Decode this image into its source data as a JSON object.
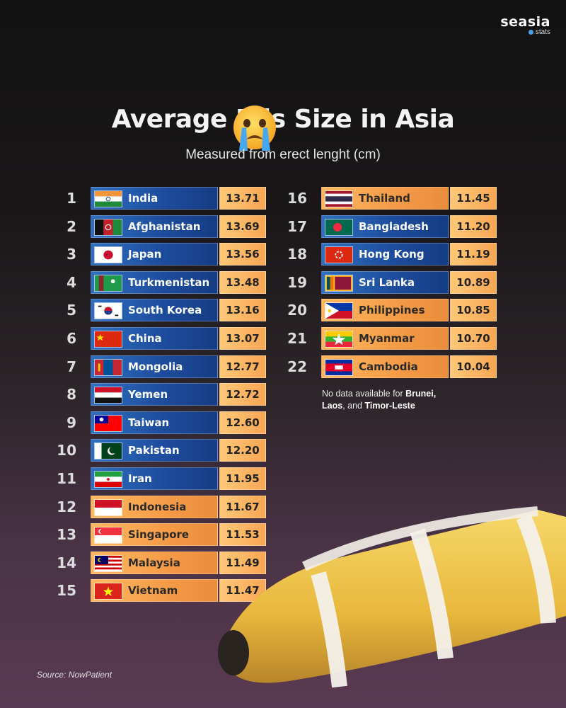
{
  "brand": {
    "name": "seasia",
    "sub": "stats"
  },
  "chart_data": {
    "type": "table",
    "title": "Average P  is Size in Asia",
    "subtitle": "Measured from erect lenght (cm)",
    "rows": [
      {
        "rank": "1",
        "country": "India",
        "value": 13.71
      },
      {
        "rank": "2",
        "country": "Afghanistan",
        "value": 13.69
      },
      {
        "rank": "3",
        "country": "Japan",
        "value": 13.56
      },
      {
        "rank": "4",
        "country": "Turkmenistan",
        "value": 13.48
      },
      {
        "rank": "5",
        "country": "South Korea",
        "value": 13.16
      },
      {
        "rank": "6",
        "country": "China",
        "value": 13.07
      },
      {
        "rank": "7",
        "country": "Mongolia",
        "value": 12.77
      },
      {
        "rank": "8",
        "country": "Yemen",
        "value": 12.72
      },
      {
        "rank": "9",
        "country": "Taiwan",
        "value": 12.6
      },
      {
        "rank": "10",
        "country": "Pakistan",
        "value": 12.2
      },
      {
        "rank": "11",
        "country": "Iran",
        "value": 11.95
      },
      {
        "rank": "12",
        "country": "Indonesia",
        "value": 11.67
      },
      {
        "rank": "13",
        "country": "Singapore",
        "value": 11.53
      },
      {
        "rank": "14",
        "country": "Malaysia",
        "value": 11.49
      },
      {
        "rank": "15",
        "country": "Vietnam",
        "value": 11.47
      },
      {
        "rank": "16",
        "country": "Thailand",
        "value": 11.45
      },
      {
        "rank": "17",
        "country": "Bangladesh",
        "value": 11.2
      },
      {
        "rank": "18",
        "country": "Hong Kong",
        "value": 11.19
      },
      {
        "rank": "19",
        "country": "Sri Lanka",
        "value": 10.89
      },
      {
        "rank": "20",
        "country": "Philippines",
        "value": 10.85
      },
      {
        "rank": "21",
        "country": "Myanmar",
        "value": 10.7
      },
      {
        "rank": "22",
        "country": "Cambodia",
        "value": 10.04
      }
    ],
    "blue_rows": [
      "India",
      "Afghanistan",
      "Japan",
      "Turkmenistan",
      "South Korea",
      "China",
      "Mongolia",
      "Yemen",
      "Taiwan",
      "Pakistan",
      "Iran",
      "Bangladesh",
      "Hong Kong",
      "Sri Lanka"
    ]
  },
  "note": {
    "prefix": "No data available for ",
    "c1": "Brunei,",
    "c2": "Laos",
    "mid": ", and ",
    "c3": "Timor-Leste"
  },
  "source": "Source: NowPatient",
  "colors": {
    "blue": "#1e4d9e",
    "orange": "#f49b47",
    "value_bg": "#f7a653"
  }
}
